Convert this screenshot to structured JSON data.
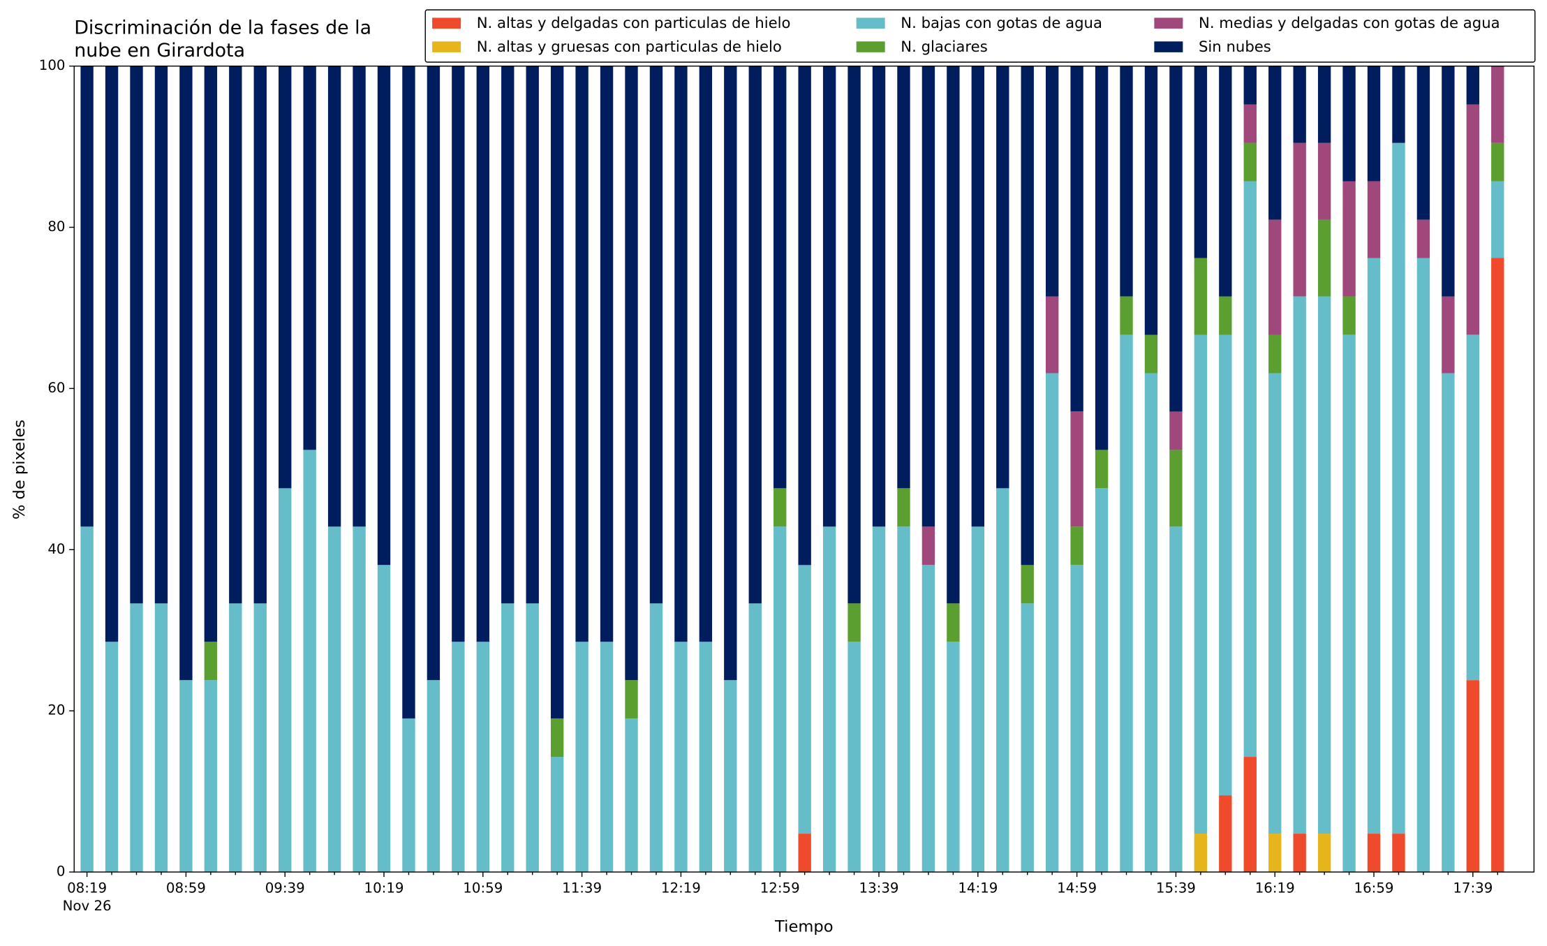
{
  "chart_data": {
    "type": "stacked_bar",
    "title": [
      "Discriminación de la fases de la",
      "nube en Girardota"
    ],
    "xlabel": "Tiempo",
    "ylabel": "% de pixeles",
    "x_date_label": "Nov 26",
    "legend": "upper right",
    "categories": [
      "08:19",
      null,
      null,
      null,
      "08:59",
      null,
      null,
      null,
      "09:39",
      null,
      null,
      null,
      "10:19",
      null,
      null,
      null,
      "10:59",
      null,
      null,
      null,
      "11:39",
      null,
      null,
      null,
      "12:19",
      null,
      null,
      null,
      "12:59",
      null,
      null,
      null,
      "13:39",
      null,
      null,
      null,
      "14:19",
      null,
      null,
      null,
      "14:59",
      null,
      null,
      null,
      "15:39",
      null,
      null,
      null,
      "16:19",
      null,
      null,
      null,
      "16:59",
      null,
      null,
      null,
      "17:39",
      null
    ],
    "ylim": [
      0,
      100
    ],
    "yticks": [
      0,
      20,
      40,
      60,
      80,
      100
    ],
    "series": [
      {
        "name": "N. altas y delgadas con particulas de hielo",
        "color": "#ee4a2b",
        "values": [
          0,
          0,
          0,
          0,
          0,
          0,
          0,
          0,
          0,
          0,
          0,
          0,
          0,
          0,
          0,
          0,
          0,
          0,
          0,
          0,
          0,
          0,
          0,
          0,
          0,
          0,
          0,
          0,
          0,
          4.76,
          0,
          0,
          0,
          0,
          0,
          0,
          0,
          0,
          0,
          0,
          0,
          0,
          0,
          0,
          0,
          0,
          9.52,
          14.29,
          0,
          4.76,
          0,
          0,
          4.76,
          4.76,
          0,
          0,
          23.81,
          76.19
        ]
      },
      {
        "name": "N. altas y gruesas con particulas de hielo",
        "color": "#e6b51b",
        "values": [
          0,
          0,
          0,
          0,
          0,
          0,
          0,
          0,
          0,
          0,
          0,
          0,
          0,
          0,
          0,
          0,
          0,
          0,
          0,
          0,
          0,
          0,
          0,
          0,
          0,
          0,
          0,
          0,
          0,
          0,
          0,
          0,
          0,
          0,
          0,
          0,
          0,
          0,
          0,
          0,
          0,
          0,
          0,
          0,
          0,
          4.76,
          0,
          0,
          4.76,
          0,
          4.76,
          0,
          0,
          0,
          0,
          0,
          0,
          0
        ]
      },
      {
        "name": "N. bajas con gotas de agua",
        "color": "#64bdc9",
        "values": [
          42.86,
          28.57,
          33.33,
          33.33,
          23.81,
          23.81,
          33.33,
          33.33,
          47.62,
          52.38,
          42.86,
          42.86,
          38.1,
          19.05,
          23.81,
          28.57,
          28.57,
          33.33,
          33.33,
          14.29,
          28.57,
          28.57,
          19.05,
          33.33,
          28.57,
          28.57,
          23.81,
          33.33,
          42.86,
          33.33,
          42.86,
          28.57,
          42.86,
          42.86,
          38.1,
          28.57,
          42.86,
          47.62,
          33.33,
          61.9,
          38.1,
          47.62,
          66.67,
          61.9,
          42.86,
          61.9,
          57.14,
          71.43,
          57.14,
          66.67,
          66.67,
          66.67,
          71.43,
          85.71,
          76.19,
          61.9,
          42.86,
          9.52
        ]
      },
      {
        "name": "N. glaciares",
        "color": "#5c9f31",
        "values": [
          0,
          0,
          0,
          0,
          0,
          4.76,
          0,
          0,
          0,
          0,
          0,
          0,
          0,
          0,
          0,
          0,
          0,
          0,
          0,
          4.76,
          0,
          0,
          4.76,
          0,
          0,
          0,
          0,
          0,
          4.76,
          0,
          0,
          4.76,
          0,
          4.76,
          0,
          4.76,
          0,
          0,
          4.76,
          0,
          4.76,
          4.76,
          4.76,
          4.76,
          9.52,
          9.52,
          4.76,
          4.76,
          4.76,
          0,
          9.52,
          4.76,
          0,
          0,
          0,
          0,
          0,
          4.76
        ]
      },
      {
        "name": "N. medias y delgadas con gotas de agua",
        "color": "#a0477c",
        "values": [
          0,
          0,
          0,
          0,
          0,
          0,
          0,
          0,
          0,
          0,
          0,
          0,
          0,
          0,
          0,
          0,
          0,
          0,
          0,
          0,
          0,
          0,
          0,
          0,
          0,
          0,
          0,
          0,
          0,
          0,
          0,
          0,
          0,
          0,
          4.76,
          0,
          0,
          0,
          0,
          9.52,
          14.29,
          0,
          0,
          0,
          4.76,
          0,
          0,
          4.76,
          14.29,
          19.05,
          9.52,
          14.29,
          9.52,
          0,
          4.76,
          9.52,
          28.57,
          9.52
        ]
      },
      {
        "name": "Sin nubes",
        "color": "#001d5e",
        "values": [
          57.14,
          71.43,
          66.67,
          66.67,
          76.19,
          71.43,
          66.67,
          66.67,
          52.38,
          47.62,
          57.14,
          57.14,
          61.9,
          80.95,
          76.19,
          71.43,
          71.43,
          66.67,
          66.67,
          80.95,
          71.43,
          71.43,
          76.19,
          66.67,
          71.43,
          71.43,
          76.19,
          66.67,
          52.38,
          61.9,
          57.14,
          66.67,
          57.14,
          52.38,
          57.14,
          66.67,
          57.14,
          52.38,
          61.9,
          28.57,
          42.86,
          47.62,
          28.57,
          33.33,
          42.86,
          23.81,
          28.57,
          4.76,
          19.05,
          9.52,
          9.52,
          14.29,
          14.29,
          9.52,
          19.05,
          28.57,
          4.76,
          0
        ]
      }
    ]
  }
}
